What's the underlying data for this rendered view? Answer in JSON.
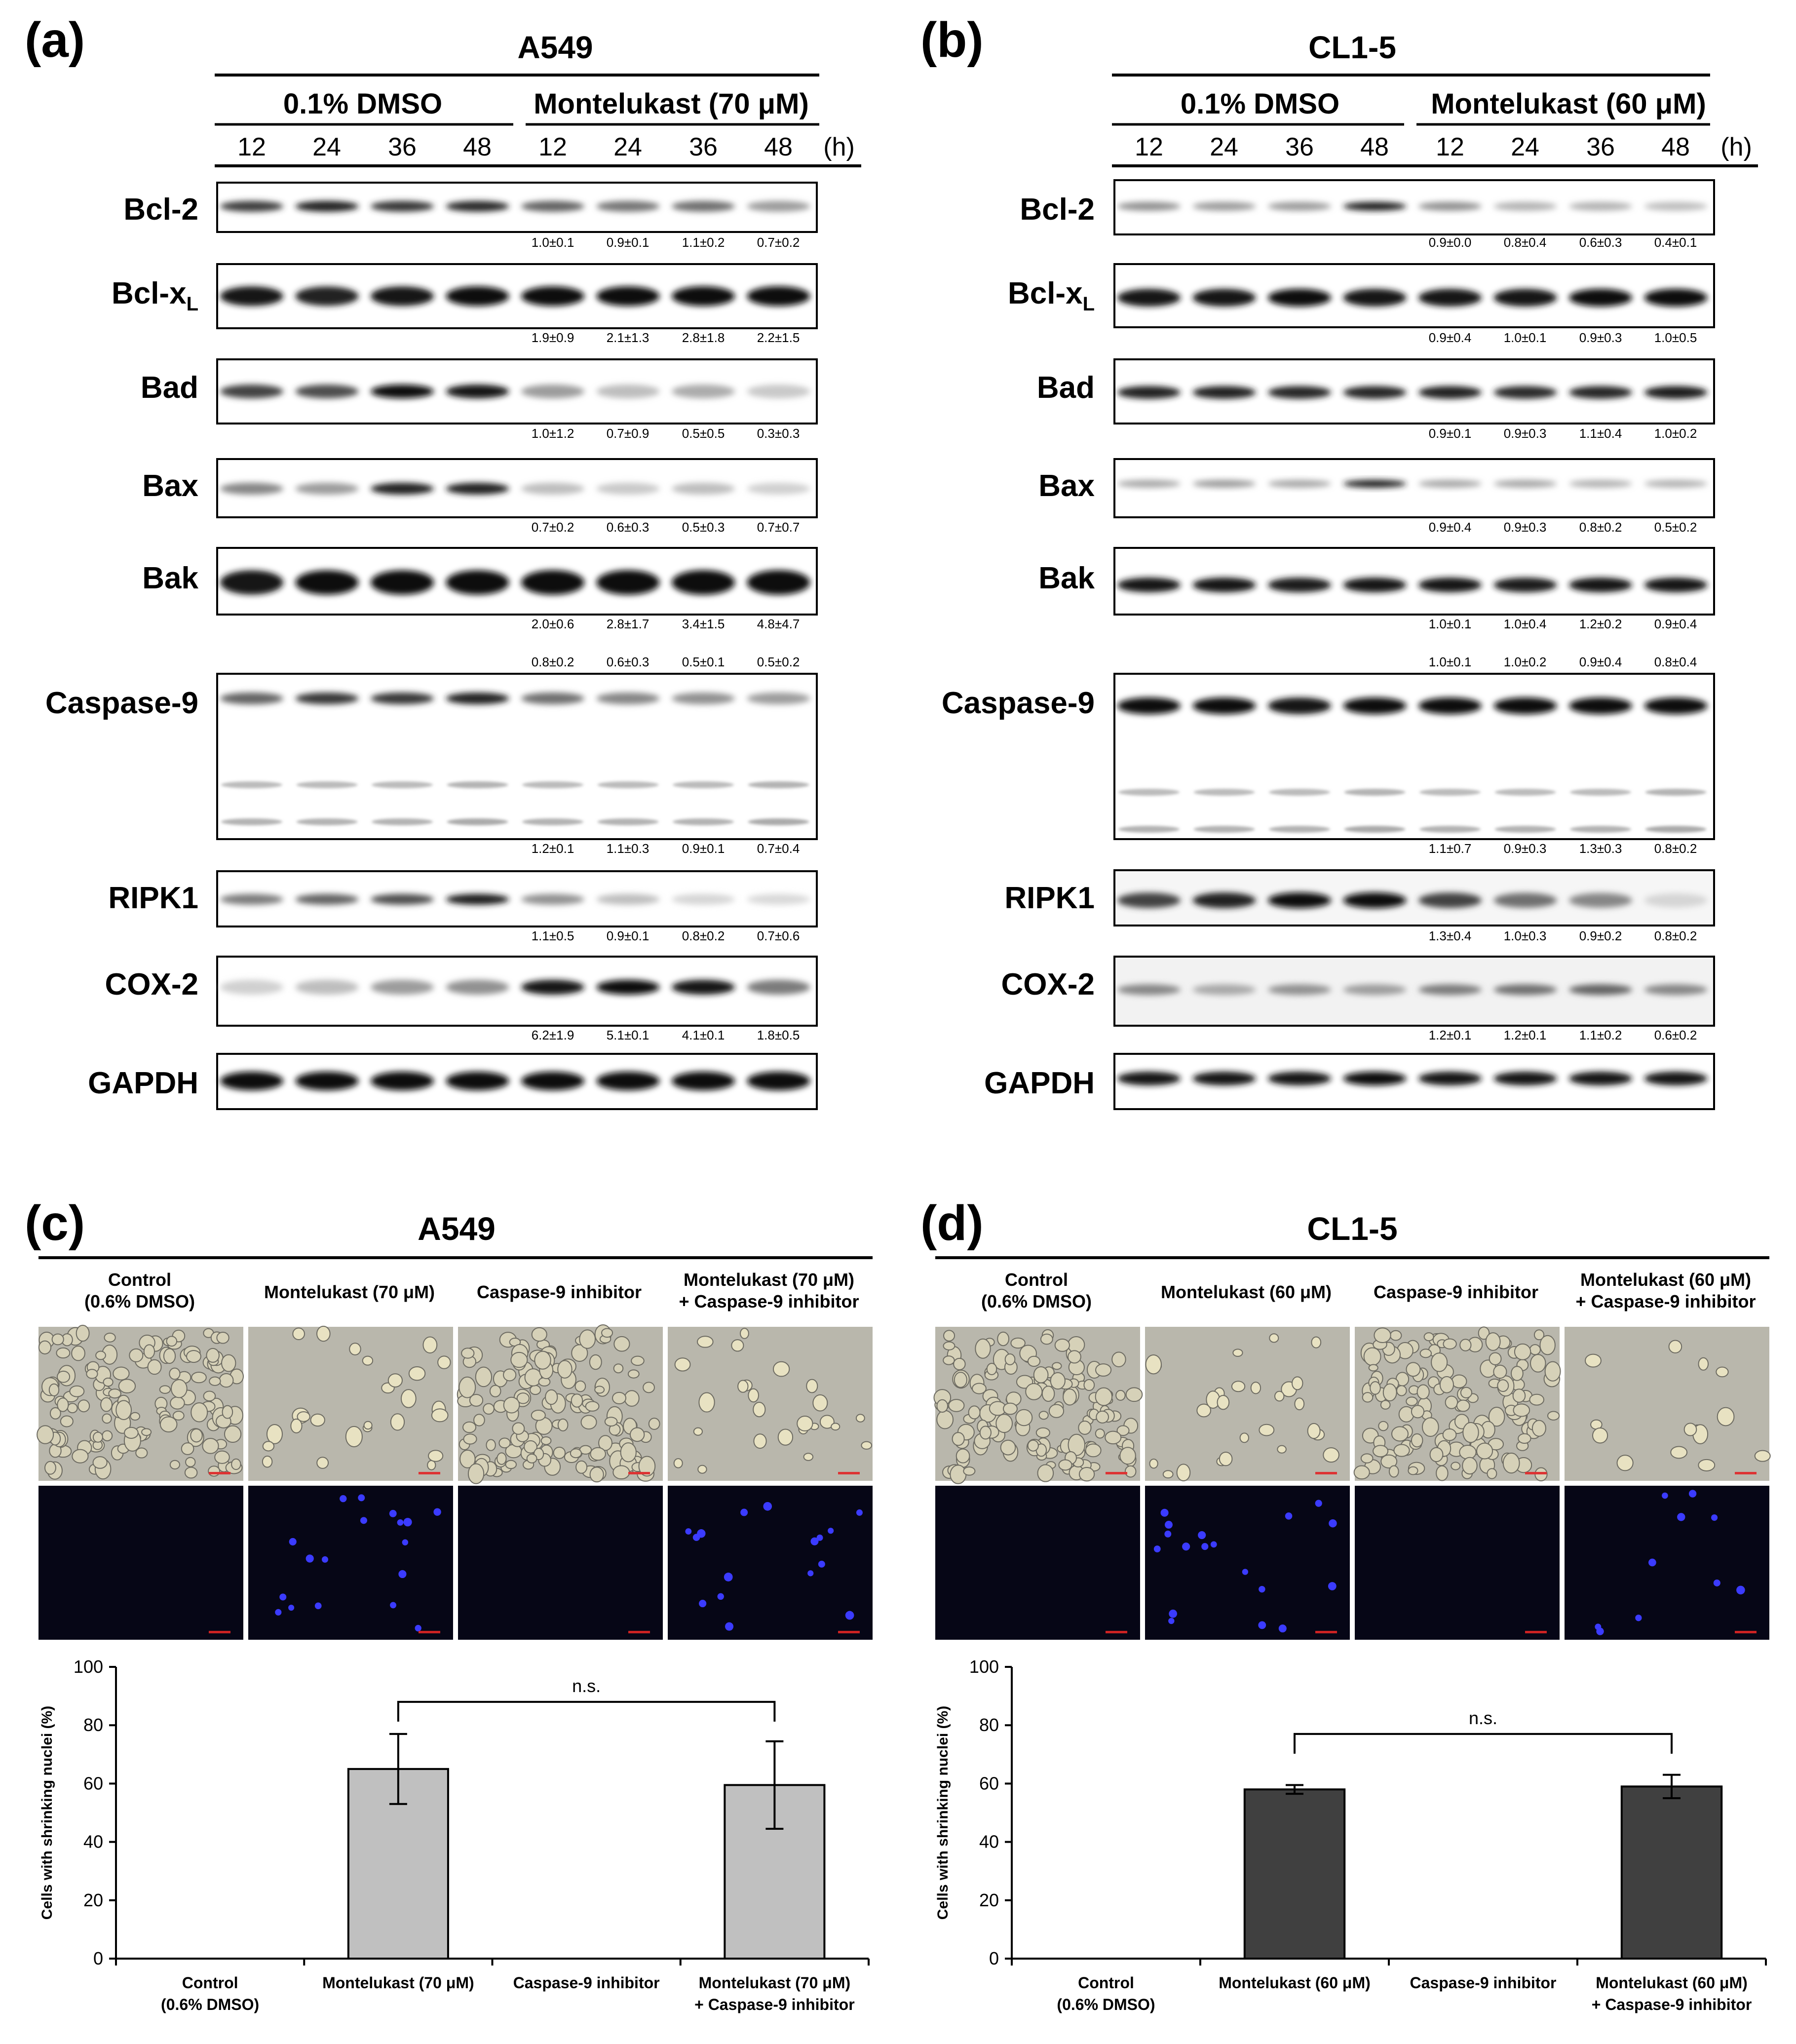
{
  "panels_top": [
    {
      "letter": "(a)",
      "cell_line": "A549",
      "group_control": "0.1% DMSO",
      "group_treatment": "Montelukast (70 μM)",
      "time_unit": "(h)",
      "times": [
        "12",
        "24",
        "36",
        "48",
        "12",
        "24",
        "36",
        "48"
      ],
      "blots": [
        {
          "protein": "Bcl-2",
          "sub": "",
          "intensities": [
            0.78,
            0.9,
            0.8,
            0.86,
            0.6,
            0.52,
            0.55,
            0.35
          ],
          "quant": [
            "1.0±0.1",
            "0.9±0.1",
            "1.1±0.2",
            "0.7±0.2"
          ]
        },
        {
          "protein": "Bcl-x",
          "sub": "L",
          "intensities": [
            0.95,
            0.9,
            0.95,
            0.97,
            0.97,
            0.98,
            1.0,
            1.0
          ],
          "quant": [
            "1.9±0.9",
            "2.1±1.3",
            "2.8±1.8",
            "2.2±1.5"
          ]
        },
        {
          "protein": "Bad",
          "sub": "",
          "intensities": [
            0.75,
            0.7,
            0.97,
            0.95,
            0.35,
            0.2,
            0.28,
            0.15
          ],
          "quant": [
            "1.0±1.2",
            "0.7±0.9",
            "0.5±0.5",
            "0.3±0.3"
          ]
        },
        {
          "protein": "Bax",
          "sub": "",
          "intensities": [
            0.45,
            0.35,
            0.9,
            0.9,
            0.2,
            0.15,
            0.2,
            0.12
          ],
          "quant": [
            "0.7±0.2",
            "0.6±0.3",
            "0.5±0.3",
            "0.7±0.7"
          ]
        },
        {
          "protein": "Bak",
          "sub": "",
          "intensities": [
            0.95,
            0.97,
            0.97,
            0.97,
            1.0,
            1.0,
            1.0,
            1.0
          ],
          "quant": [
            "2.0±0.6",
            "2.8±1.7",
            "3.4±1.5",
            "4.8±4.7"
          ]
        },
        {
          "protein": "Caspase-9",
          "sub": "",
          "intensities": [
            0.6,
            0.8,
            0.8,
            0.9,
            0.55,
            0.45,
            0.4,
            0.35
          ],
          "quant_top": [
            "0.8±0.2",
            "0.6±0.3",
            "0.5±0.1",
            "0.5±0.2"
          ],
          "quant": [
            "1.2±0.1",
            "1.1±0.3",
            "0.9±0.1",
            "0.7±0.4"
          ]
        },
        {
          "protein": "RIPK1",
          "sub": "",
          "intensities": [
            0.5,
            0.6,
            0.7,
            0.92,
            0.4,
            0.2,
            0.1,
            0.08
          ],
          "quant": [
            "1.1±0.5",
            "0.9±0.1",
            "0.8±0.2",
            "0.7±0.6"
          ]
        },
        {
          "protein": "COX-2",
          "sub": "",
          "intensities": [
            0.12,
            0.2,
            0.35,
            0.4,
            0.95,
            0.98,
            0.95,
            0.5
          ],
          "quant": [
            "6.2±1.9",
            "5.1±0.1",
            "4.1±0.1",
            "1.8±0.5"
          ]
        },
        {
          "protein": "GAPDH",
          "sub": "",
          "intensities": [
            1.0,
            1.0,
            1.0,
            1.0,
            1.0,
            1.0,
            1.0,
            1.0
          ],
          "quant": []
        }
      ]
    },
    {
      "letter": "(b)",
      "cell_line": "CL1-5",
      "group_control": "0.1% DMSO",
      "group_treatment": "Montelukast (60 μM)",
      "time_unit": "(h)",
      "times": [
        "12",
        "24",
        "36",
        "48",
        "12",
        "24",
        "36",
        "48"
      ],
      "blots": [
        {
          "protein": "Bcl-2",
          "sub": "",
          "intensities": [
            0.4,
            0.35,
            0.35,
            0.9,
            0.4,
            0.25,
            0.25,
            0.2
          ],
          "quant": [
            "0.9±0.0",
            "0.8±0.4",
            "0.6±0.3",
            "0.4±0.1"
          ]
        },
        {
          "protein": "Bcl-x",
          "sub": "L",
          "intensities": [
            0.95,
            0.95,
            0.97,
            0.95,
            0.95,
            0.95,
            0.97,
            1.0
          ],
          "quant": [
            "0.9±0.4",
            "1.0±0.1",
            "0.9±0.3",
            "1.0±0.5"
          ]
        },
        {
          "protein": "Bad",
          "sub": "",
          "intensities": [
            0.9,
            0.9,
            0.88,
            0.88,
            0.9,
            0.85,
            0.88,
            0.92
          ],
          "quant": [
            "0.9±0.1",
            "0.9±0.3",
            "1.1±0.4",
            "1.0±0.2"
          ]
        },
        {
          "protein": "Bax",
          "sub": "",
          "intensities": [
            0.3,
            0.35,
            0.3,
            0.9,
            0.3,
            0.3,
            0.25,
            0.25
          ],
          "quant": [
            "0.9±0.4",
            "0.9±0.3",
            "0.8±0.2",
            "0.5±0.2"
          ]
        },
        {
          "protein": "Bak",
          "sub": "",
          "intensities": [
            0.95,
            0.95,
            0.93,
            0.95,
            0.95,
            0.93,
            0.95,
            0.95
          ],
          "quant": [
            "1.0±0.1",
            "1.0±0.4",
            "1.2±0.2",
            "0.9±0.4"
          ]
        },
        {
          "protein": "Caspase-9",
          "sub": "",
          "intensities": [
            0.97,
            0.97,
            0.95,
            0.97,
            0.97,
            0.97,
            0.97,
            0.97
          ],
          "quant_top": [
            "1.0±0.1",
            "1.0±0.2",
            "0.9±0.4",
            "0.8±0.4"
          ],
          "quant": [
            "1.1±0.7",
            "0.9±0.3",
            "1.3±0.3",
            "0.8±0.2"
          ]
        },
        {
          "protein": "RIPK1",
          "sub": "",
          "intensities": [
            0.75,
            0.9,
            0.97,
            0.97,
            0.75,
            0.55,
            0.45,
            0.1
          ],
          "quant": [
            "1.3±0.4",
            "1.0±0.3",
            "0.9±0.2",
            "0.8±0.2"
          ]
        },
        {
          "protein": "COX-2",
          "sub": "",
          "intensities": [
            0.45,
            0.3,
            0.4,
            0.35,
            0.5,
            0.55,
            0.6,
            0.45
          ],
          "quant": [
            "1.2±0.1",
            "1.2±0.1",
            "1.1±0.2",
            "0.6±0.2"
          ]
        },
        {
          "protein": "GAPDH",
          "sub": "",
          "intensities": [
            0.95,
            0.95,
            0.95,
            0.97,
            0.95,
            0.95,
            0.95,
            0.95
          ],
          "quant": []
        }
      ]
    }
  ],
  "panels_bottom": [
    {
      "letter": "(c)",
      "cell_line": "A549",
      "conditions": [
        {
          "line1": "Control",
          "line2": "(0.6% DMSO)"
        },
        {
          "line1": "Montelukast (70 μM)",
          "line2": ""
        },
        {
          "line1": "Caspase-9 inhibitor",
          "line2": ""
        },
        {
          "line1": "Montelukast (70 μM)",
          "line2": "+ Caspase-9 inhibitor"
        }
      ],
      "image_rows": [
        "phase-contrast",
        "fluorescence"
      ],
      "cell_density": [
        "dense",
        "sparse",
        "dense",
        "sparse"
      ],
      "nuclei_counts": [
        0,
        18,
        0,
        16
      ],
      "bar_color": "#c0c0c0"
    },
    {
      "letter": "(d)",
      "cell_line": "CL1-5",
      "conditions": [
        {
          "line1": "Control",
          "line2": "(0.6% DMSO)"
        },
        {
          "line1": "Montelukast (60 μM)",
          "line2": ""
        },
        {
          "line1": "Caspase-9 inhibitor",
          "line2": ""
        },
        {
          "line1": "Montelukast (60 μM)",
          "line2": "+ Caspase-9 inhibitor"
        }
      ],
      "image_rows": [
        "phase-contrast",
        "fluorescence"
      ],
      "cell_density": [
        "dense",
        "sparse",
        "dense",
        "very-sparse"
      ],
      "nuclei_counts": [
        0,
        18,
        0,
        10
      ],
      "bar_color": "#404040"
    }
  ],
  "chart_data": [
    {
      "type": "bar",
      "title": "",
      "ylabel": "Cells with shrinking nuclei (%)",
      "xlabel": "",
      "ylim": [
        0,
        100
      ],
      "yticks": [
        "0",
        "20",
        "40",
        "60",
        "80",
        "100"
      ],
      "categories": [
        "Control (0.6% DMSO)",
        "Montelukast (70 μM)",
        "Caspase-9 inhibitor",
        "Montelukast (70 μM) + Caspase-9 inhibitor"
      ],
      "tick_labels": [
        {
          "line1": "Control",
          "line2": "(0.6% DMSO)"
        },
        {
          "line1": "Montelukast (70 μM)",
          "line2": ""
        },
        {
          "line1": "Caspase-9 inhibitor",
          "line2": ""
        },
        {
          "line1": "Montelukast (70 μM)",
          "line2": "+ Caspase-9 inhibitor"
        }
      ],
      "values": [
        0,
        65,
        0,
        59.5
      ],
      "errors": [
        0,
        12,
        0,
        15
      ],
      "bar_color": "#c0c0c0",
      "annotation": {
        "text": "n.s.",
        "from": 1,
        "to": 3,
        "y": 88
      }
    },
    {
      "type": "bar",
      "title": "",
      "ylabel": "Cells with shrinking nuclei (%)",
      "xlabel": "",
      "ylim": [
        0,
        100
      ],
      "yticks": [
        "0",
        "20",
        "40",
        "60",
        "80",
        "100"
      ],
      "categories": [
        "Control (0.6% DMSO)",
        "Montelukast (60 μM)",
        "Caspase-9 inhibitor",
        "Montelukast (60 μM) + Caspase-9 inhibitor"
      ],
      "tick_labels": [
        {
          "line1": "Control",
          "line2": "(0.6% DMSO)"
        },
        {
          "line1": "Montelukast (60 μM)",
          "line2": ""
        },
        {
          "line1": "Caspase-9 inhibitor",
          "line2": ""
        },
        {
          "line1": "Montelukast (60 μM)",
          "line2": "+ Caspase-9 inhibitor"
        }
      ],
      "values": [
        0,
        58,
        0,
        59
      ],
      "errors": [
        0,
        1.5,
        0,
        4
      ],
      "bar_color": "#404040",
      "annotation": {
        "text": "n.s.",
        "from": 1,
        "to": 3,
        "y": 77
      }
    }
  ]
}
